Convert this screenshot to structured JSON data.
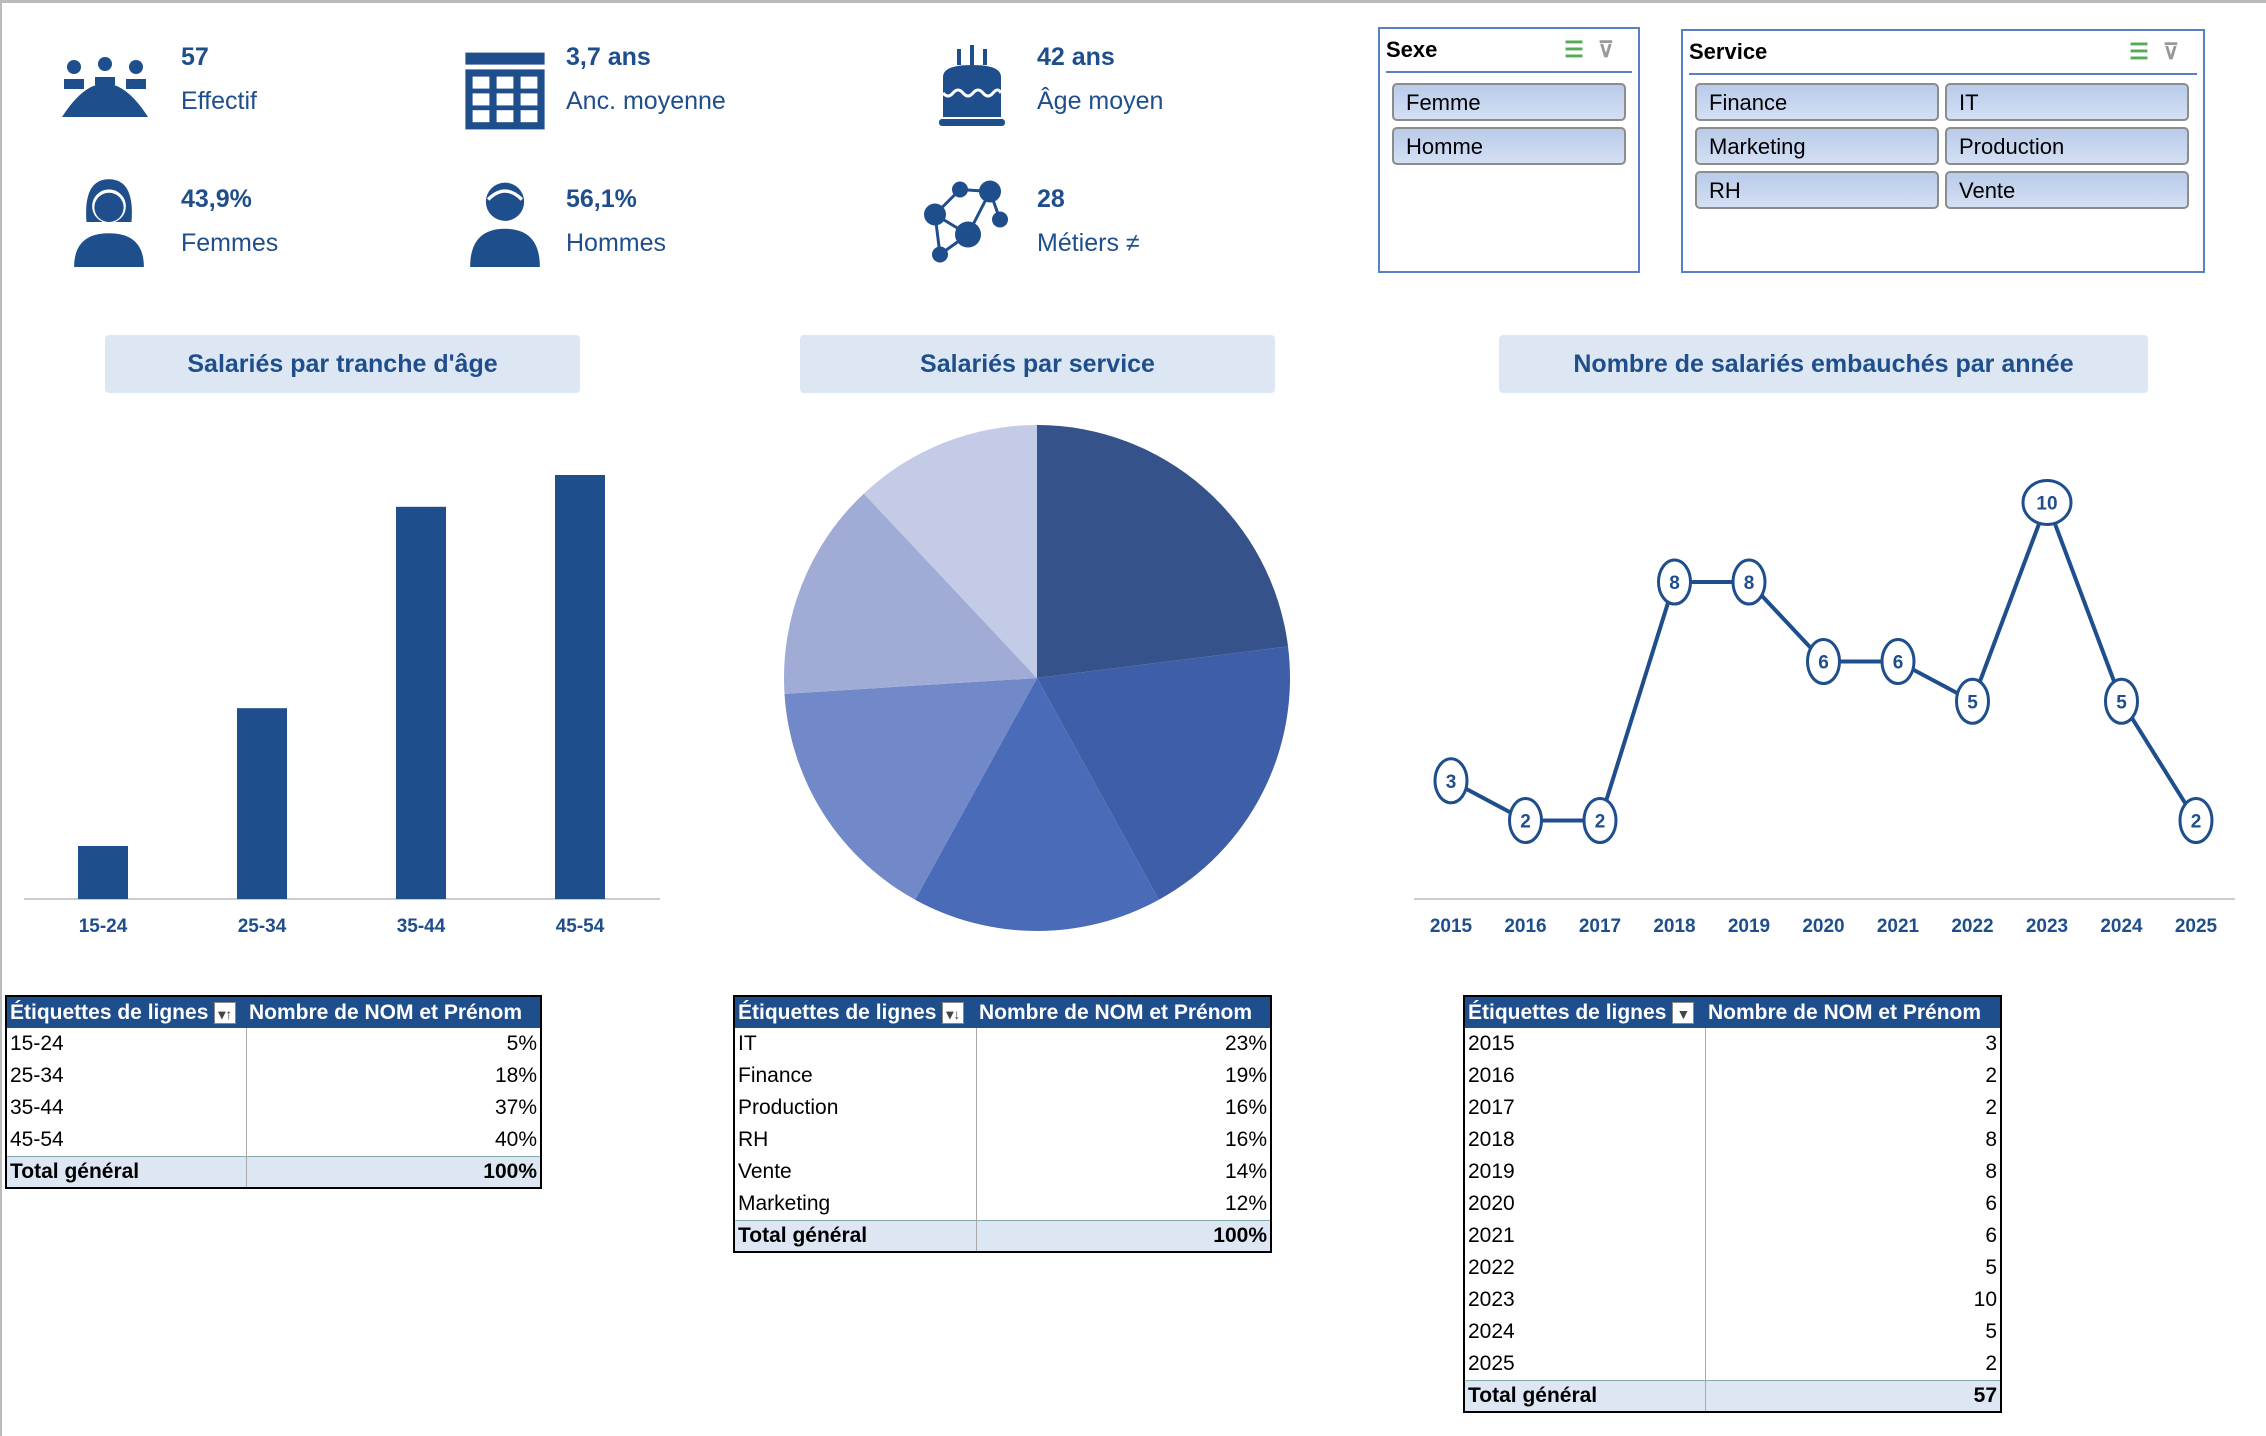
{
  "kpis": [
    {
      "value": "57",
      "label": "Effectif",
      "icon": "people-group-icon"
    },
    {
      "value": "3,7 ans",
      "label": "Anc. moyenne",
      "icon": "calendar-icon"
    },
    {
      "value": "42 ans",
      "label": "Âge moyen",
      "icon": "birthday-cake-icon"
    },
    {
      "value": "43,9%",
      "label": "Femmes",
      "icon": "woman-icon"
    },
    {
      "value": "56,1%",
      "label": "Hommes",
      "icon": "man-icon"
    },
    {
      "value": "28",
      "label": "Métiers ≠",
      "icon": "network-icon"
    }
  ],
  "slicers": {
    "sexe": {
      "title": "Sexe",
      "items": [
        "Femme",
        "Homme"
      ]
    },
    "service": {
      "title": "Service",
      "items": [
        "Finance",
        "IT",
        "Marketing",
        "Production",
        "RH",
        "Vente"
      ]
    }
  },
  "colors": {
    "primary": "#1f4e8c",
    "pie": [
      "#36528b",
      "#3f5ea8",
      "#4a6cb8",
      "#7189c8",
      "#a0acd6",
      "#c3cbe6"
    ]
  },
  "chart_data": [
    {
      "type": "bar",
      "title": "Salariés par tranche d'âge",
      "categories": [
        "15-24",
        "25-34",
        "35-44",
        "45-54"
      ],
      "values": [
        5,
        18,
        37,
        40
      ],
      "value_format": "%",
      "data_labels": [
        "5%",
        "18%",
        "37%",
        "40%"
      ],
      "grid": false
    },
    {
      "type": "pie",
      "title": "Salariés par service",
      "categories": [
        "IT",
        "Finance",
        "Production",
        "RH",
        "Vente",
        "Marketing"
      ],
      "values": [
        23,
        19,
        16,
        16,
        14,
        12
      ],
      "data_labels": [
        "23%",
        "19%",
        "16%",
        "16%",
        "14%",
        "12%"
      ]
    },
    {
      "type": "line",
      "title": "Nombre de salariés embauchés par année",
      "x": [
        "2015",
        "2016",
        "2017",
        "2018",
        "2019",
        "2020",
        "2021",
        "2022",
        "2023",
        "2024",
        "2025"
      ],
      "values": [
        3,
        2,
        2,
        8,
        8,
        6,
        6,
        5,
        10,
        5,
        2
      ],
      "grid": false
    }
  ],
  "tables": [
    {
      "headers": [
        "Étiquettes de lignes",
        "Nombre de NOM et Prénom"
      ],
      "rows": [
        [
          "15-24",
          "5%"
        ],
        [
          "25-34",
          "18%"
        ],
        [
          "35-44",
          "37%"
        ],
        [
          "45-54",
          "40%"
        ]
      ],
      "total": [
        "Total général",
        "100%"
      ]
    },
    {
      "headers": [
        "Étiquettes de lignes",
        "Nombre de NOM et Prénom"
      ],
      "rows": [
        [
          "IT",
          "23%"
        ],
        [
          "Finance",
          "19%"
        ],
        [
          "Production",
          "16%"
        ],
        [
          "RH",
          "16%"
        ],
        [
          "Vente",
          "14%"
        ],
        [
          "Marketing",
          "12%"
        ]
      ],
      "total": [
        "Total général",
        "100%"
      ]
    },
    {
      "headers": [
        "Étiquettes de lignes",
        "Nombre de NOM et Prénom"
      ],
      "rows": [
        [
          "2015",
          "3"
        ],
        [
          "2016",
          "2"
        ],
        [
          "2017",
          "2"
        ],
        [
          "2018",
          "8"
        ],
        [
          "2019",
          "8"
        ],
        [
          "2020",
          "6"
        ],
        [
          "2021",
          "6"
        ],
        [
          "2022",
          "5"
        ],
        [
          "2023",
          "10"
        ],
        [
          "2024",
          "5"
        ],
        [
          "2025",
          "2"
        ]
      ],
      "total": [
        "Total général",
        "57"
      ]
    }
  ]
}
